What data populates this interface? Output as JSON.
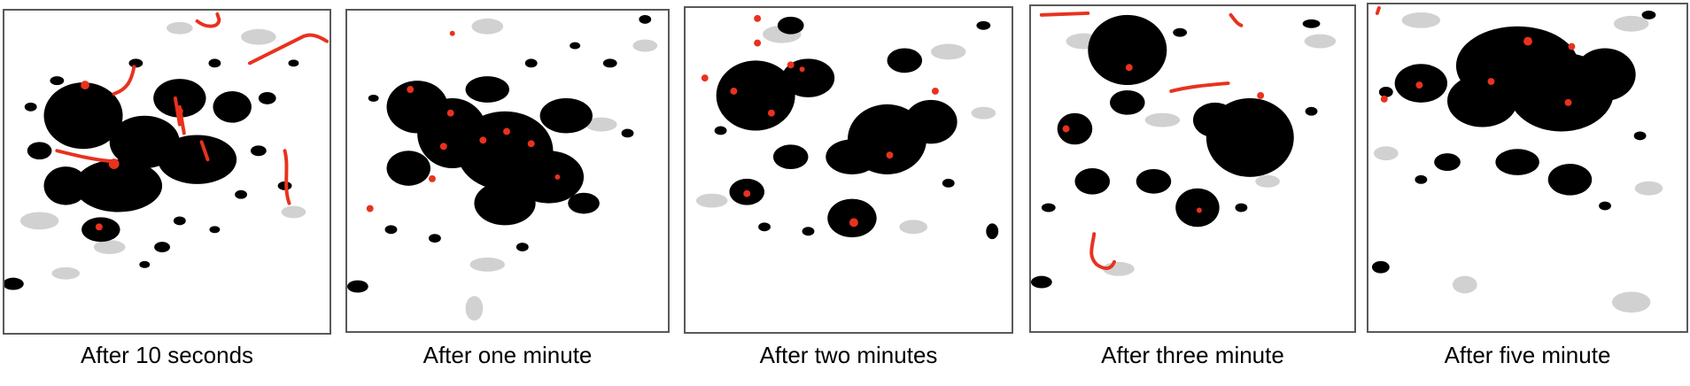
{
  "panels": [
    {
      "caption": "After 10 seconds"
    },
    {
      "caption": "After one minute"
    },
    {
      "caption": "After two minutes"
    },
    {
      "caption": "After three minute"
    },
    {
      "caption": "After five minute"
    }
  ],
  "colors": {
    "border": "#595959",
    "insect": "#000000",
    "motion_blur": "#9a9a9a",
    "tracked_track": "#e8321e"
  }
}
